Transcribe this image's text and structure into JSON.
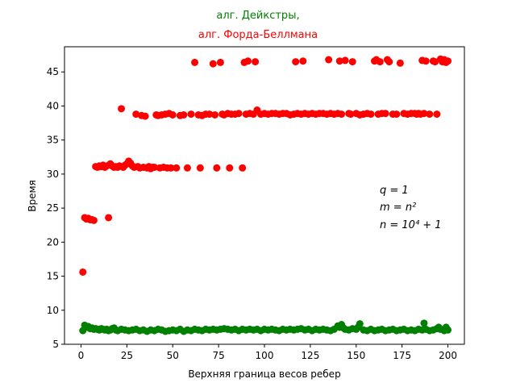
{
  "chart_data": {
    "type": "scatter",
    "title_lines": [
      {
        "text": "алг. Дейкстры,",
        "color": "#008000"
      },
      {
        "text": "алг. Форда-Беллмана",
        "color": "#ff0000"
      }
    ],
    "xlabel": "Верхняя граница весов ребер",
    "ylabel": "Время",
    "xlim": [
      -9,
      209
    ],
    "ylim": [
      5.0,
      48.7
    ],
    "xticks": [
      0,
      25,
      50,
      75,
      100,
      125,
      150,
      175,
      200
    ],
    "yticks": [
      5,
      10,
      15,
      20,
      25,
      30,
      35,
      40,
      45
    ],
    "grid": false,
    "annotations": [
      "q = 1",
      "m = n²",
      "n = 10⁴ + 1"
    ],
    "series": [
      {
        "color": "#ff0000",
        "x": [
          1,
          2,
          3,
          4,
          5,
          6,
          7,
          8,
          9,
          10,
          11,
          12,
          13,
          14,
          15,
          16,
          17,
          18,
          19,
          20,
          21,
          22,
          23,
          24,
          25,
          26,
          27,
          28,
          29,
          30,
          31,
          32,
          33,
          34,
          35,
          36,
          37,
          38,
          39,
          40,
          41,
          42,
          43,
          44,
          45,
          46,
          47,
          48,
          49,
          50,
          52,
          54,
          56,
          58,
          60,
          62,
          64,
          65,
          66,
          68,
          70,
          72,
          73,
          74,
          76,
          77,
          78,
          80,
          81,
          82,
          84,
          86,
          88,
          89,
          90,
          91,
          92,
          94,
          95,
          96,
          98,
          100,
          102,
          104,
          106,
          108,
          110,
          112,
          114,
          116,
          117,
          118,
          120,
          121,
          122,
          124,
          126,
          128,
          130,
          132,
          134,
          135,
          136,
          138,
          140,
          141,
          142,
          144,
          146,
          147,
          148,
          150,
          152,
          154,
          156,
          158,
          160,
          161,
          162,
          163,
          164,
          166,
          167,
          168,
          170,
          172,
          174,
          176,
          178,
          180,
          182,
          183,
          184,
          185,
          186,
          187,
          188,
          190,
          192,
          193,
          194,
          196,
          197,
          198,
          199,
          200
        ],
        "y": [
          15.6,
          23.6,
          23.4,
          23.5,
          23.3,
          23.3,
          23.2,
          31.1,
          31.0,
          31.2,
          31.1,
          31.3,
          31.0,
          31.2,
          23.6,
          31.5,
          31.2,
          31.0,
          31.1,
          31.0,
          31.2,
          39.6,
          31.0,
          31.3,
          31.5,
          31.9,
          31.6,
          31.2,
          31.0,
          38.8,
          31.1,
          30.9,
          38.6,
          31.0,
          38.5,
          30.9,
          31.1,
          30.8,
          31.0,
          31.0,
          38.7,
          38.6,
          30.9,
          38.7,
          31.0,
          38.8,
          30.9,
          38.9,
          30.9,
          38.7,
          30.9,
          38.6,
          38.7,
          30.9,
          38.8,
          46.4,
          38.7,
          30.9,
          38.6,
          38.8,
          38.8,
          46.2,
          38.7,
          30.9,
          46.4,
          38.8,
          38.7,
          38.9,
          30.9,
          38.8,
          38.8,
          38.9,
          30.9,
          46.4,
          38.8,
          46.6,
          38.9,
          38.8,
          46.5,
          39.4,
          38.8,
          38.9,
          38.8,
          38.9,
          38.9,
          38.8,
          38.9,
          38.9,
          38.7,
          38.8,
          46.5,
          38.9,
          38.8,
          46.6,
          38.9,
          38.8,
          38.9,
          38.8,
          38.9,
          38.9,
          38.8,
          46.8,
          38.9,
          38.8,
          38.9,
          46.6,
          38.8,
          46.7,
          38.9,
          38.8,
          46.5,
          38.9,
          38.7,
          38.8,
          38.9,
          38.8,
          46.6,
          46.8,
          38.8,
          46.5,
          38.9,
          38.9,
          46.8,
          46.5,
          38.8,
          38.8,
          46.3,
          38.9,
          38.8,
          38.9,
          38.9,
          38.8,
          38.9,
          38.8,
          46.7,
          38.9,
          46.6,
          38.8,
          46.6,
          46.5,
          38.8,
          46.9,
          46.5,
          46.8,
          46.4,
          46.6
        ]
      },
      {
        "color": "#008000",
        "x": [
          1,
          2,
          3,
          4,
          5,
          6,
          7,
          8,
          9,
          10,
          11,
          12,
          13,
          14,
          15,
          16,
          17,
          18,
          19,
          20,
          22,
          24,
          26,
          28,
          30,
          32,
          34,
          36,
          38,
          40,
          42,
          44,
          46,
          48,
          50,
          52,
          54,
          56,
          58,
          60,
          62,
          64,
          66,
          68,
          70,
          72,
          74,
          76,
          78,
          80,
          82,
          84,
          86,
          88,
          90,
          92,
          94,
          96,
          98,
          100,
          102,
          104,
          106,
          108,
          110,
          112,
          114,
          116,
          118,
          120,
          122,
          124,
          126,
          128,
          130,
          132,
          134,
          136,
          138,
          140,
          141,
          142,
          143,
          144,
          146,
          148,
          150,
          151,
          152,
          154,
          156,
          158,
          160,
          162,
          164,
          166,
          168,
          170,
          172,
          174,
          176,
          178,
          180,
          182,
          184,
          186,
          187,
          188,
          190,
          192,
          194,
          195,
          196,
          198,
          199,
          200
        ],
        "y": [
          7.0,
          7.8,
          7.5,
          7.6,
          7.3,
          7.4,
          7.2,
          7.3,
          7.2,
          7.1,
          7.3,
          7.2,
          7.1,
          7.2,
          7.0,
          7.1,
          7.3,
          7.4,
          7.1,
          7.0,
          7.2,
          7.1,
          7.0,
          7.1,
          7.2,
          7.0,
          7.1,
          6.9,
          7.1,
          7.0,
          7.2,
          7.1,
          6.9,
          7.0,
          7.1,
          7.0,
          7.2,
          6.9,
          7.1,
          7.0,
          7.2,
          7.1,
          7.0,
          7.2,
          7.1,
          7.2,
          7.1,
          7.2,
          7.3,
          7.2,
          7.1,
          7.2,
          7.0,
          7.2,
          7.1,
          7.2,
          7.1,
          7.2,
          7.0,
          7.2,
          7.1,
          7.2,
          7.1,
          7.0,
          7.2,
          7.1,
          7.2,
          7.1,
          7.2,
          7.3,
          7.1,
          7.2,
          7.0,
          7.2,
          7.1,
          7.2,
          7.1,
          7.0,
          7.2,
          7.7,
          7.5,
          7.9,
          7.4,
          7.2,
          7.1,
          7.3,
          7.2,
          7.5,
          8.0,
          7.1,
          7.0,
          7.2,
          7.0,
          7.1,
          7.2,
          7.0,
          7.1,
          7.2,
          7.0,
          7.1,
          7.2,
          7.0,
          7.1,
          7.0,
          7.2,
          7.1,
          8.1,
          7.2,
          7.0,
          7.1,
          7.3,
          7.5,
          7.2,
          7.0,
          7.5,
          7.1
        ]
      }
    ]
  }
}
